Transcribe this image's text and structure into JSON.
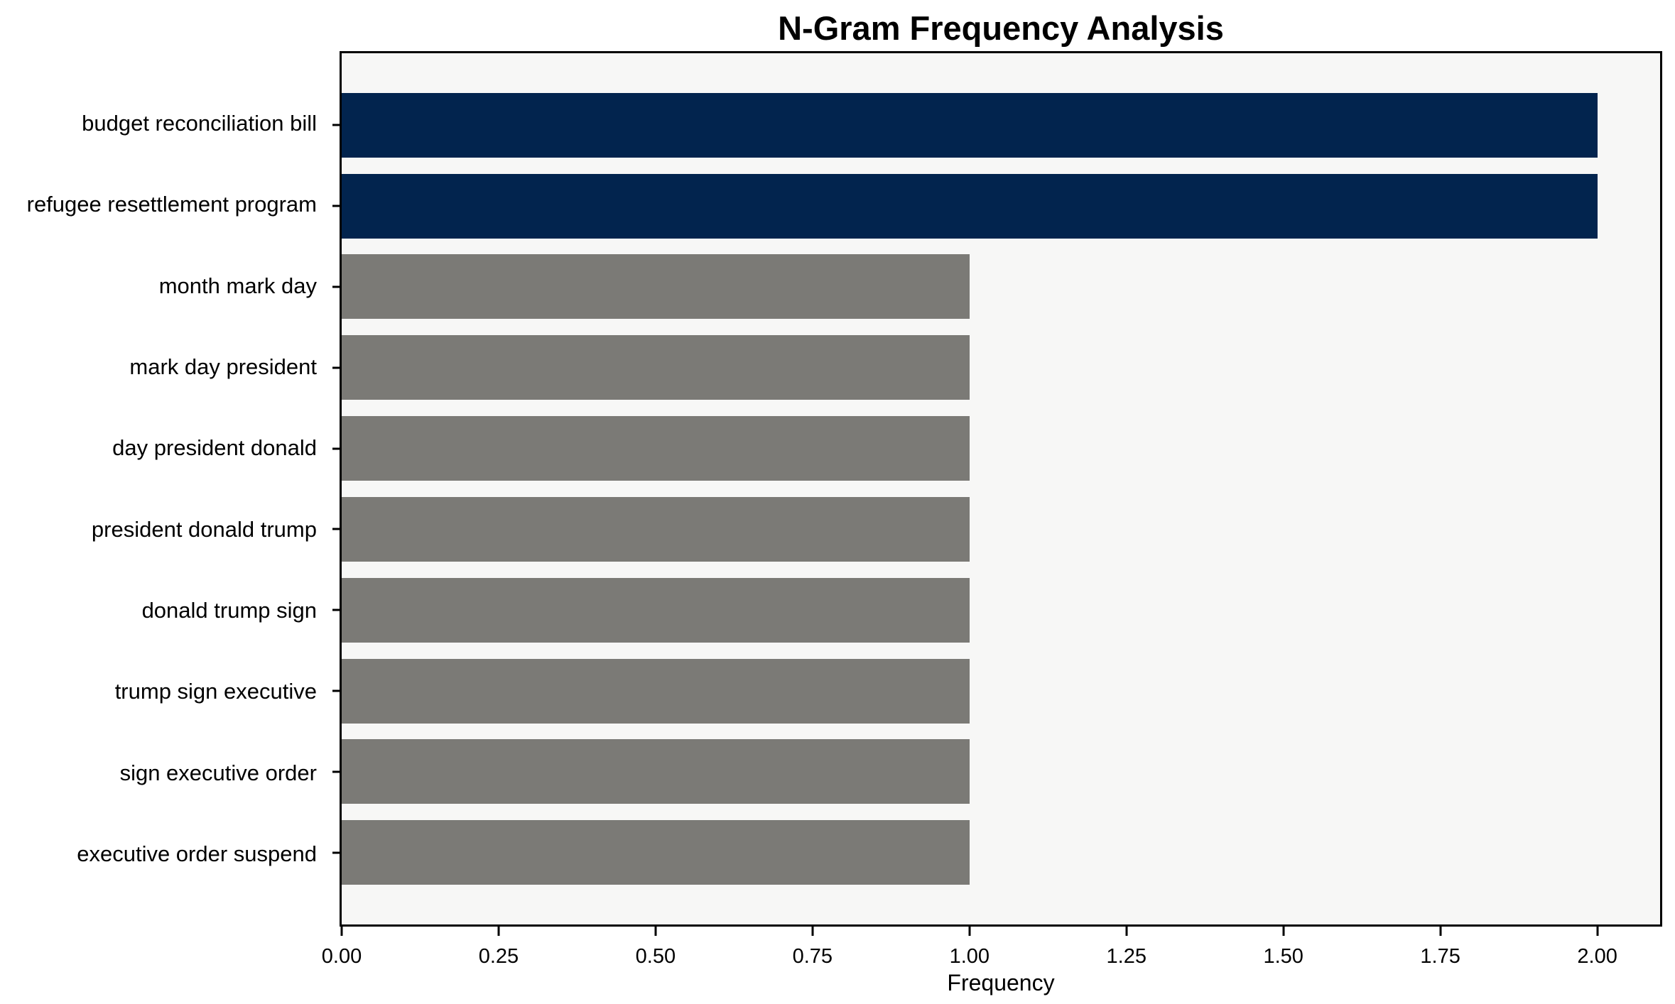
{
  "chart_data": {
    "type": "bar",
    "orientation": "horizontal",
    "title": "N-Gram Frequency Analysis",
    "xlabel": "Frequency",
    "ylabel": "",
    "categories": [
      "budget reconciliation bill",
      "refugee resettlement program",
      "month mark day",
      "mark day president",
      "day president donald",
      "president donald trump",
      "donald trump sign",
      "trump sign executive",
      "sign executive order",
      "executive order suspend"
    ],
    "values": [
      2,
      2,
      1,
      1,
      1,
      1,
      1,
      1,
      1,
      1
    ],
    "bar_colors": [
      "#02244e",
      "#02244e",
      "#7b7a76",
      "#7b7a76",
      "#7b7a76",
      "#7b7a76",
      "#7b7a76",
      "#7b7a76",
      "#7b7a76",
      "#7b7a76"
    ],
    "xlim": [
      0,
      2.1
    ],
    "xticks": [
      "0.00",
      "0.25",
      "0.50",
      "0.75",
      "1.00",
      "1.25",
      "1.50",
      "1.75",
      "2.00"
    ],
    "xtick_values": [
      0,
      0.25,
      0.5,
      0.75,
      1.0,
      1.25,
      1.5,
      1.75,
      2.0
    ],
    "grid": false,
    "legend": null,
    "colors": {
      "highlight_bar": "#02244e",
      "default_bar": "#7b7a76",
      "plot_background": "#f7f7f6",
      "figure_background": "#ffffff",
      "spine": "#000000",
      "text": "#000000"
    }
  }
}
